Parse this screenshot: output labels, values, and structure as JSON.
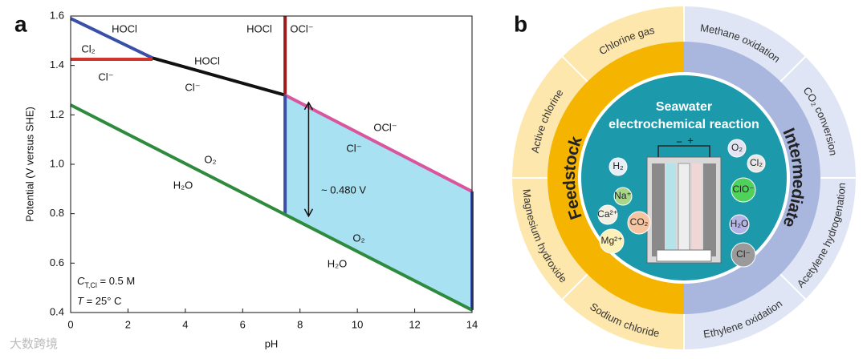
{
  "chart_data": {
    "type": "line",
    "panel_label": "a",
    "xlabel": "pH",
    "ylabel": "Potential (V versus SHE)",
    "xlim": [
      0,
      14
    ],
    "xticks": [
      0,
      2,
      4,
      6,
      8,
      10,
      12,
      14
    ],
    "ylim": [
      0.4,
      1.6
    ],
    "yticks": [
      0.4,
      0.6,
      0.8,
      {
        "value": 1,
        "label": "1.0"
      },
      1.2,
      1.4,
      1.6
    ],
    "series": [
      {
        "color": "#3a4fa8",
        "x": [
          0,
          2.86
        ],
        "values": [
          1.59,
          1.43
        ]
      },
      {
        "color": "#d0342c",
        "x": [
          0,
          2.86
        ],
        "values": [
          1.425,
          1.425
        ]
      },
      {
        "color": "#111111",
        "x": [
          2.86,
          7.48
        ],
        "values": [
          1.43,
          1.28
        ]
      },
      {
        "color": "#9b1c1c",
        "x": [
          7.48,
          7.48
        ],
        "values": [
          1.28,
          1.6
        ]
      },
      {
        "color": "#d9569e",
        "x": [
          7.48,
          14
        ],
        "values": [
          1.28,
          0.89
        ]
      },
      {
        "color": "#3a4fa8",
        "x": [
          7.48,
          7.48
        ],
        "values": [
          1.28,
          0.8
        ]
      },
      {
        "color": "#3a4fa8",
        "x": [
          14,
          14
        ],
        "values": [
          0.89,
          0.41
        ]
      },
      {
        "color": "#2e8b3e",
        "x": [
          0,
          14
        ],
        "values": [
          1.24,
          0.41
        ]
      }
    ],
    "region": {
      "color": "#a8e2f2",
      "x": [
        7.48,
        14,
        14,
        7.48
      ],
      "values": [
        1.28,
        0.89,
        0.41,
        0.8
      ]
    },
    "arrow": {
      "x": 8.3,
      "values": [
        1.25,
        0.79
      ]
    },
    "annotations": [
      "HOCl",
      "Cl₂",
      "Cl⁻",
      "HOCl",
      "Cl⁻",
      "HOCl",
      "OCl⁻",
      "OCl⁻",
      "Cl⁻",
      "~ 0.480 V",
      "O₂",
      "H₂O",
      "O₂",
      "H₂O"
    ],
    "conditions": [
      [
        "C",
        "T,Cl",
        " = 0.5 M"
      ],
      [
        "T",
        " = 25° C"
      ]
    ]
  },
  "diagram": {
    "panel_label": "b",
    "title": [
      "Seawater",
      "electrochemical reaction"
    ],
    "feedstock": "Feedstock",
    "intermediate": "Intermediate",
    "feedstock_uses": [
      "Chlorine gas",
      "Active chlorine",
      "Magnesium hydroxide",
      "Sodium chloride"
    ],
    "intermediate_uses": [
      "Methane oxidation",
      "CO₂ conversion",
      "Acetylene hydrogenation",
      "Ethylene oxidation"
    ],
    "species_in": [
      "H₂",
      "Na⁺",
      "Ca²⁺",
      "CO₂",
      "Mg²⁺"
    ],
    "species_out": [
      "O₂",
      "Cl₂",
      "ClO⁻",
      "H₂O",
      "Cl⁻"
    ],
    "cell_terminals": [
      "−",
      "+"
    ]
  },
  "watermark": "大数跨境"
}
